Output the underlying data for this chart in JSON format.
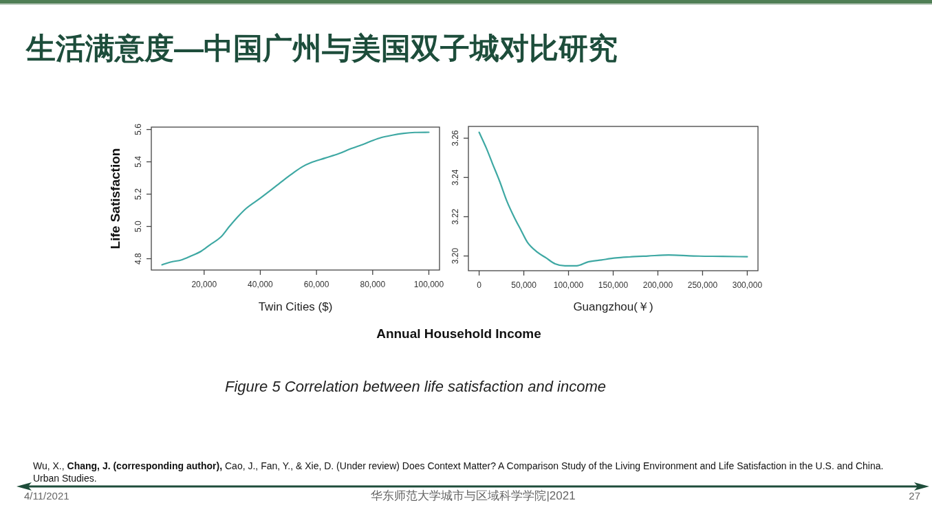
{
  "chart_data": [
    {
      "type": "line",
      "title": "生活满意度—中国广州与美国双子城对比研究",
      "xlabel": "Twin Cities ($)",
      "ylabel": "Life Satisfaction",
      "color": "#3ea8a3",
      "x": [
        5000,
        8000,
        12000,
        15000,
        19000,
        22000,
        26000,
        29000,
        32000,
        35000,
        40000,
        44000,
        48000,
        52000,
        55000,
        58000,
        63000,
        68000,
        72000,
        77000,
        80000,
        83000,
        87000,
        91000,
        95000,
        100000
      ],
      "values": [
        4.762,
        4.779,
        4.793,
        4.814,
        4.847,
        4.885,
        4.935,
        5.0,
        5.06,
        5.112,
        5.175,
        5.228,
        5.283,
        5.335,
        5.37,
        5.395,
        5.423,
        5.451,
        5.48,
        5.511,
        5.532,
        5.55,
        5.565,
        5.576,
        5.582,
        5.583
      ],
      "xlim": [
        1200,
        103800
      ],
      "ylim": [
        4.73,
        5.615
      ],
      "xticks": [
        {
          "value": 20000,
          "label": "20,000"
        },
        {
          "value": 40000,
          "label": "40,000"
        },
        {
          "value": 60000,
          "label": "60,000"
        },
        {
          "value": 80000,
          "label": "80,000"
        },
        {
          "value": 100000,
          "label": "100,000"
        }
      ],
      "yticks": [
        4.8,
        {
          "value": 5,
          "label": "5.0"
        },
        5.2,
        5.4,
        5.6
      ],
      "annotations": [
        "Annual Household Income",
        "Figure 5 Correlation between life satisfaction and income",
        "Wu, X., **Chang, J. (corresponding author),** Cao, J., Fan, Y., & Xie, D. (Under review) Does Context Matter? A Comparison Study of the Living Environment and Life Satisfaction in the U.S. and China. Urban Studies.",
        "4/11/2021",
        "华东师范大学城市与区域科学学院|2021",
        "27"
      ]
    },
    {
      "type": "line",
      "xlabel": "Guangzhou(￥)",
      "color": "#3ea8a3",
      "x": [
        0,
        8000,
        15000,
        23000,
        31000,
        39000,
        47000,
        54000,
        65000,
        75000,
        85000,
        96000,
        109000,
        122000,
        137000,
        153000,
        168000,
        189000,
        212000,
        240000,
        272000,
        300000
      ],
      "values": [
        3.263,
        3.255,
        3.247,
        3.238,
        3.228,
        3.22,
        3.213,
        3.207,
        3.202,
        3.199,
        3.196,
        3.195,
        3.195,
        3.197,
        3.198,
        3.199,
        3.1995,
        3.2,
        3.2005,
        3.2,
        3.1998,
        3.1996
      ],
      "xlim": [
        -12000,
        312000
      ],
      "ylim": [
        3.1925,
        3.266
      ],
      "xticks": [
        0,
        {
          "value": 50000,
          "label": "50,000"
        },
        {
          "value": 100000,
          "label": "100,000"
        },
        {
          "value": 150000,
          "label": "150,000"
        },
        {
          "value": 200000,
          "label": "200,000"
        },
        {
          "value": 250000,
          "label": "250,000"
        },
        {
          "value": 300000,
          "label": "300,000"
        }
      ],
      "yticks": [
        {
          "value": 3.2,
          "label": "3.20"
        },
        3.22,
        3.24,
        3.26
      ]
    }
  ]
}
